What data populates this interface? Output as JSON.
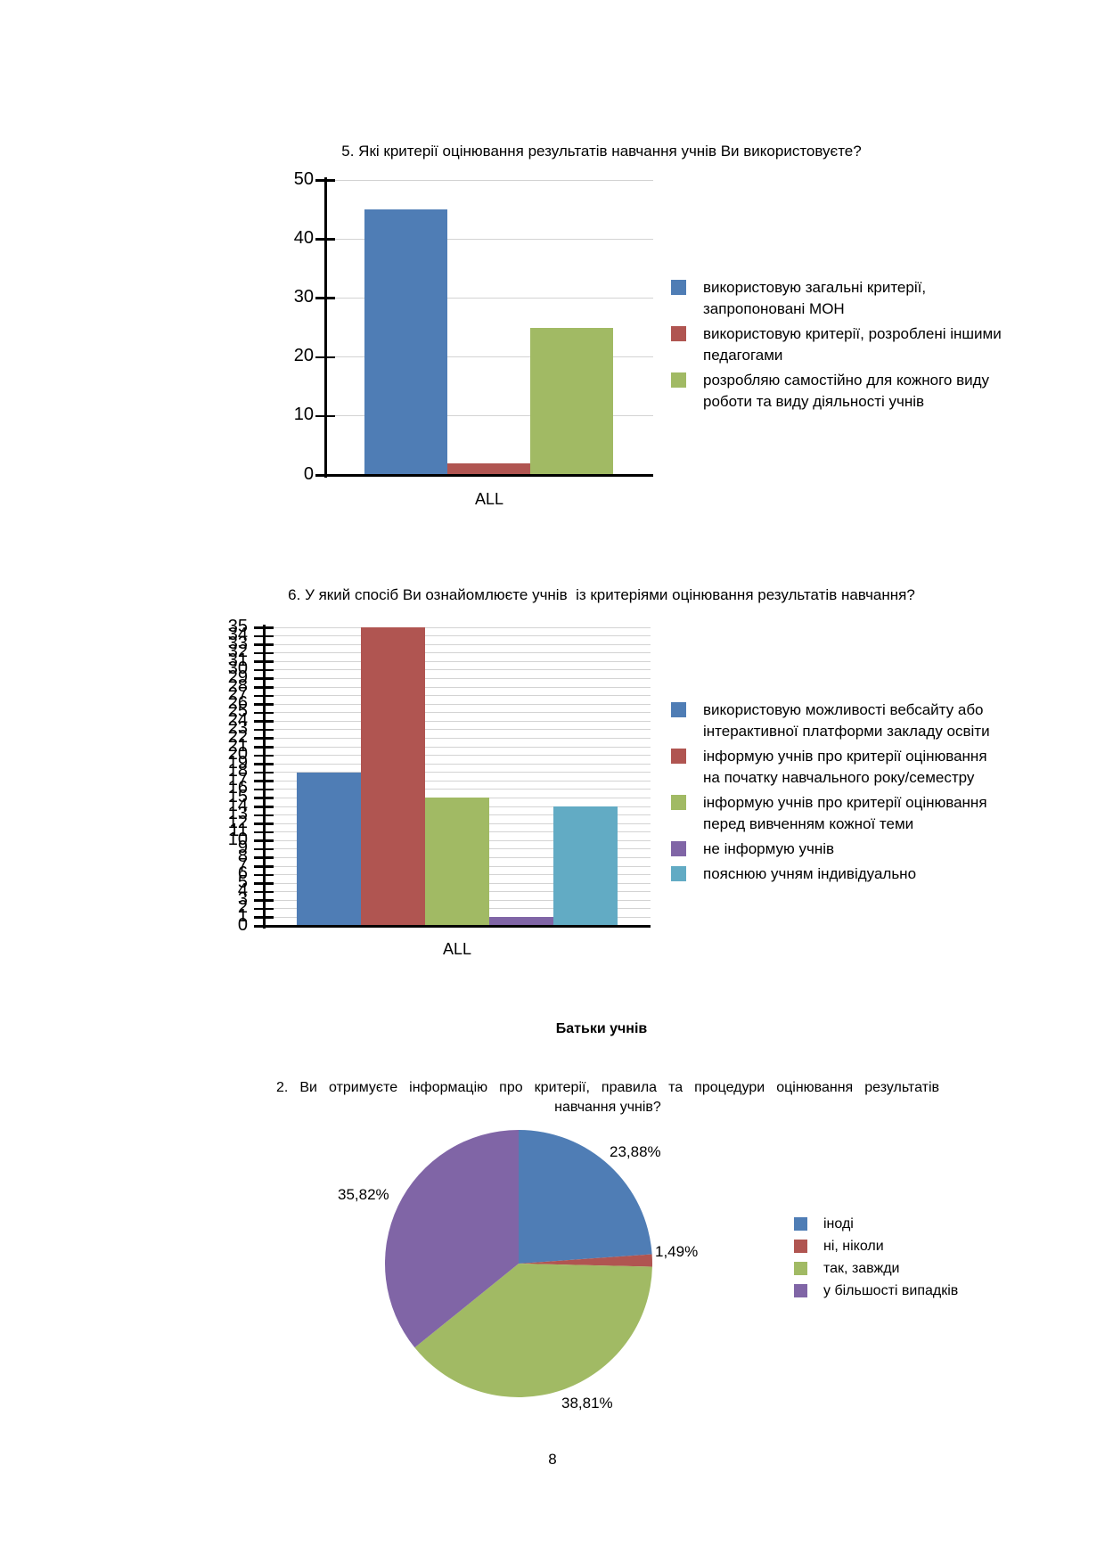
{
  "page_number": "8",
  "section_heading": "Батьки учнів",
  "chart_data": [
    {
      "type": "bar",
      "title": "5. Які критерії оцінювання результатів навчання учнів Ви використовуєте?",
      "categories": [
        "ALL"
      ],
      "xlabel": "ALL",
      "ylim": [
        0,
        50
      ],
      "ytick_step": 10,
      "grid": true,
      "legend_position": "right",
      "series": [
        {
          "name": "використовую загальні критерії, запропоновані МОН",
          "label_lines": [
            "використовую загальні критерії,",
            "запропоновані МОН"
          ],
          "color": "#4F7DB5",
          "values": [
            45
          ]
        },
        {
          "name": "використовую критерії, розроблені іншими педагогами",
          "label_lines": [
            "використовую критерії, розроблені іншими",
            "педагогами"
          ],
          "color": "#B05551",
          "values": [
            2
          ]
        },
        {
          "name": "розробляю самостійно для кожного виду роботи та виду діяльності учнів",
          "label_lines": [
            "розробляю самостійно для кожного виду",
            "роботи та виду діяльності учнів"
          ],
          "color": "#A1BA64",
          "values": [
            25
          ]
        }
      ]
    },
    {
      "type": "bar",
      "title": "6. У який спосіб Ви ознайомлюєте учнів  із критеріями оцінювання результатів навчання?",
      "categories": [
        "ALL"
      ],
      "xlabel": "ALL",
      "ylim": [
        0,
        35
      ],
      "ytick_step": 1,
      "grid": true,
      "legend_position": "right",
      "series": [
        {
          "name": "використовую можливості вебсайту або інтерактивної платформи закладу освіти",
          "label_lines": [
            "використовую можливості вебсайту або",
            "інтерактивної платформи закладу освіти"
          ],
          "color": "#4F7DB5",
          "values": [
            18
          ]
        },
        {
          "name": "інформую учнів про критерії оцінювання на початку навчального року/семестру",
          "label_lines": [
            "інформую учнів про критерії оцінювання",
            "на початку навчального року/семестру"
          ],
          "color": "#B05551",
          "values": [
            35
          ]
        },
        {
          "name": "інформую учнів про критерії оцінювання перед вивченням кожної теми",
          "label_lines": [
            "інформую учнів про критерії оцінювання",
            "перед вивченням кожної теми"
          ],
          "color": "#A1BA64",
          "values": [
            15
          ]
        },
        {
          "name": "не інформую учнів",
          "label_lines": [
            "не інформую учнів"
          ],
          "color": "#8065A6",
          "values": [
            1
          ]
        },
        {
          "name": "пояснюю учням індивідуально",
          "label_lines": [
            "пояснюю учням індивідуально"
          ],
          "color": "#62ABC4",
          "values": [
            14
          ]
        }
      ]
    },
    {
      "type": "pie",
      "title": "2. Ви отримуєте інформацію про критерії, правила та процедури оцінювання результатів навчання учнів?",
      "title_line1": "2. Ви отримуєте інформацію про критерії, правила та процедури оцінювання результатів",
      "title_line2": "навчання учнів?",
      "labels": [
        "іноді",
        "ні, ніколи",
        "так, завжди",
        "у більшості випадків"
      ],
      "values": [
        23.88,
        1.49,
        38.81,
        35.82
      ],
      "value_labels": [
        "23,88%",
        "1,49%",
        "38,81%",
        "35,82%"
      ],
      "colors": [
        "#4F7DB5",
        "#B05551",
        "#A1BA64",
        "#8065A6"
      ],
      "start_angle_deg": -90,
      "direction": "clockwise",
      "legend_position": "right"
    }
  ]
}
